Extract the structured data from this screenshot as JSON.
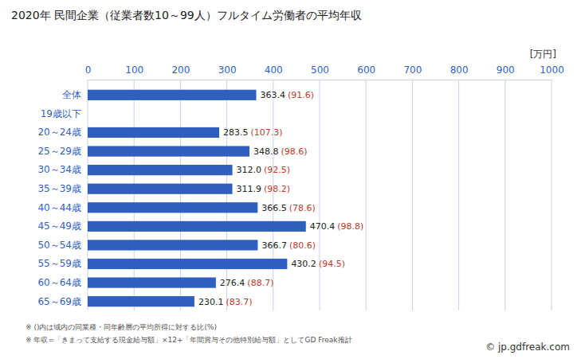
{
  "chart_data": {
    "type": "bar",
    "title": "2020年 民間企業（従業者数10～99人）フルタイム労働者の平均年収",
    "unit_label": "[万円]",
    "orientation": "horizontal",
    "categories": [
      "全体",
      "19歳以下",
      "20～24歳",
      "25～29歳",
      "30～34歳",
      "35～39歳",
      "40～44歳",
      "45～49歳",
      "50～54歳",
      "55～59歳",
      "60～64歳",
      "65～69歳"
    ],
    "values": [
      363.4,
      null,
      283.5,
      348.8,
      312.0,
      311.9,
      366.5,
      470.4,
      366.7,
      430.2,
      276.4,
      230.1
    ],
    "value_labels": [
      "363.4",
      null,
      "283.5",
      "348.8",
      "312.0",
      "311.9",
      "366.5",
      "470.4",
      "366.7",
      "430.2",
      "276.4",
      "230.1"
    ],
    "ratios": [
      91.6,
      null,
      107.3,
      98.6,
      92.5,
      98.2,
      78.6,
      98.8,
      80.6,
      94.5,
      88.7,
      83.7
    ],
    "ratio_labels": [
      "(91.6)",
      null,
      "(107.3)",
      "(98.6)",
      "(92.5)",
      "(98.2)",
      "(78.6)",
      "(98.8)",
      "(80.6)",
      "(94.5)",
      "(88.7)",
      "(83.7)"
    ],
    "color": "#2f5fbf",
    "xlim": [
      0,
      1000
    ],
    "xticks": [
      0,
      100,
      200,
      300,
      400,
      500,
      600,
      700,
      800,
      900,
      1000
    ],
    "grid": true,
    "data_labels": true,
    "notes": [
      "※ ()内は域内の同業種・同年齢層の平均所得に対する比(%)",
      "※ 年収=「きまって支給する現金給与額」×12+「年間賞与その他特別給与額」としてGD Freak推計"
    ],
    "source": "© jp.gdfreak.com"
  }
}
